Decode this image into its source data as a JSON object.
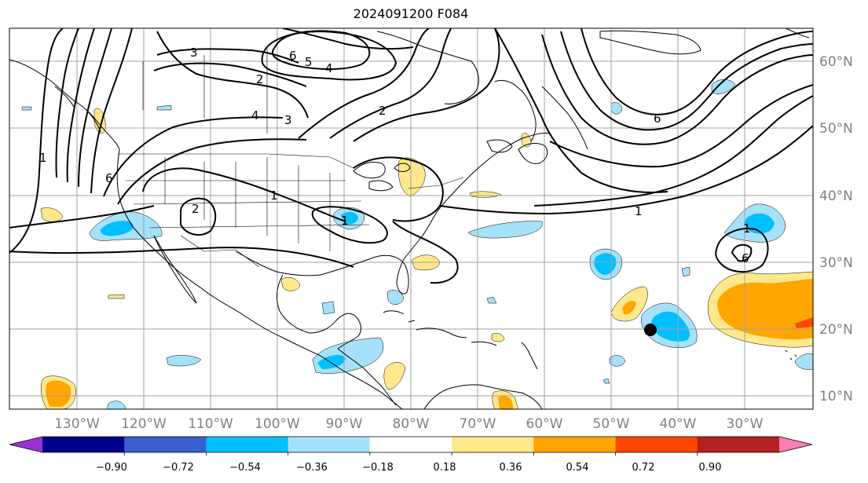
{
  "title": "2024091200 F084",
  "lon_labels": [
    "130°W",
    "120°W",
    "110°W",
    "100°W",
    "90°W",
    "80°W",
    "70°W",
    "60°W",
    "50°W",
    "40°W",
    "30°W"
  ],
  "lat_labels": [
    "60°N",
    "50°N",
    "40°N",
    "30°N",
    "20°N",
    "10°N"
  ],
  "colorbar": {
    "ticks": [
      "−0.90",
      "−0.72",
      "−0.54",
      "−0.36",
      "−0.18",
      "0.18",
      "0.36",
      "0.54",
      "0.72",
      "0.90"
    ],
    "colors": [
      "#9b30d6",
      "#00008b",
      "#3a5fcd",
      "#00bfff",
      "#a6e1fa",
      "#ffffff",
      "#ffe88c",
      "#ffa500",
      "#ff4500",
      "#b22222",
      "#ff80b0"
    ]
  },
  "contour_labels": [
    "1",
    "1",
    "1",
    "1",
    "1",
    "2",
    "2",
    "2",
    "3",
    "3",
    "4",
    "4",
    "5",
    "6",
    "6",
    "6",
    "6"
  ],
  "colors": {
    "land_line": "#000000",
    "grid": "#a0a0a0",
    "axis_text": "#808080",
    "storm_marker": "#000000"
  }
}
